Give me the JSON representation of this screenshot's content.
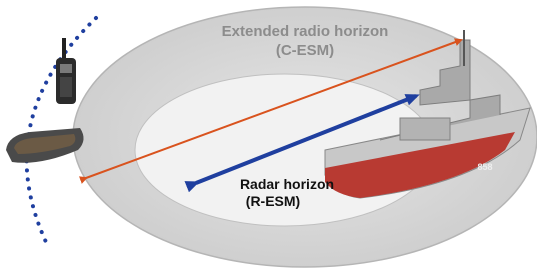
{
  "outer_horizon": {
    "title": "Extended radio horizon",
    "subtitle": "(C-ESM)"
  },
  "inner_horizon": {
    "title": "Radar horizon",
    "subtitle": "(R-ESM)"
  }
}
